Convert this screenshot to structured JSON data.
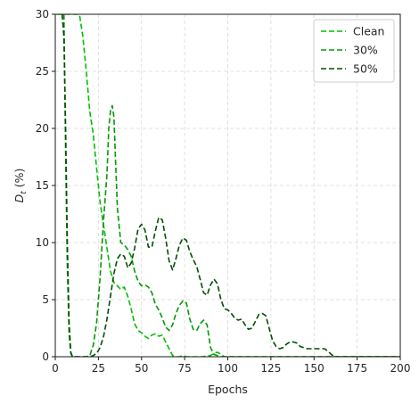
{
  "chart_data": {
    "type": "line",
    "xlabel": "Epochs",
    "ylabel": "D_t (%)",
    "xlim": [
      0,
      200
    ],
    "ylim": [
      0,
      30
    ],
    "xticks": [
      0,
      25,
      50,
      75,
      100,
      125,
      150,
      175,
      200
    ],
    "yticks": [
      0,
      5,
      10,
      15,
      20,
      25,
      30
    ],
    "grid": true,
    "legend_position": "top-right",
    "series": [
      {
        "name": "Clean",
        "color": "#00bf00",
        "points": [
          [
            1,
            30
          ],
          [
            10,
            30
          ],
          [
            14,
            30
          ],
          [
            16,
            28
          ],
          [
            18,
            25
          ],
          [
            20,
            21.5
          ],
          [
            22,
            19.5
          ],
          [
            24,
            16.5
          ],
          [
            26,
            13.5
          ],
          [
            28,
            11.5
          ],
          [
            30,
            9.5
          ],
          [
            32,
            7.5
          ],
          [
            34,
            6.5
          ],
          [
            36,
            6.2
          ],
          [
            38,
            5.9
          ],
          [
            40,
            6.1
          ],
          [
            42,
            5.3
          ],
          [
            44,
            4.2
          ],
          [
            46,
            2.9
          ],
          [
            48,
            2.3
          ],
          [
            50,
            2.1
          ],
          [
            52,
            1.8
          ],
          [
            54,
            1.6
          ],
          [
            56,
            1.9
          ],
          [
            58,
            2.0
          ],
          [
            60,
            1.8
          ],
          [
            62,
            1.9
          ],
          [
            64,
            1.3
          ],
          [
            66,
            0.7
          ],
          [
            68,
            0.1
          ],
          [
            70,
            0.0
          ],
          [
            72,
            0.0
          ],
          [
            74,
            0.1
          ],
          [
            76,
            0.0
          ],
          [
            80,
            0.0
          ],
          [
            85,
            0.0
          ],
          [
            90,
            0.1
          ],
          [
            92,
            0.3
          ],
          [
            94,
            0.4
          ],
          [
            96,
            0.2
          ],
          [
            98,
            0.0
          ],
          [
            105,
            0.0
          ],
          [
            120,
            0.0
          ],
          [
            150,
            0.0
          ],
          [
            200,
            0.0
          ]
        ]
      },
      {
        "name": "30%",
        "color": "#009a00",
        "points": [
          [
            5,
            30
          ],
          [
            6,
            18
          ],
          [
            7,
            8
          ],
          [
            8,
            2
          ],
          [
            9,
            0.3
          ],
          [
            10,
            0.0
          ],
          [
            14,
            0.0
          ],
          [
            18,
            0.0
          ],
          [
            20,
            0.1
          ],
          [
            22,
            1.0
          ],
          [
            24,
            3.0
          ],
          [
            26,
            7.0
          ],
          [
            28,
            12.0
          ],
          [
            30,
            16.0
          ],
          [
            31,
            20.0
          ],
          [
            32,
            21.5
          ],
          [
            33,
            22.0
          ],
          [
            34,
            21.0
          ],
          [
            35,
            17.0
          ],
          [
            36,
            13.0
          ],
          [
            38,
            10.0
          ],
          [
            40,
            9.8
          ],
          [
            42,
            9.4
          ],
          [
            44,
            8.8
          ],
          [
            46,
            7.5
          ],
          [
            48,
            6.6
          ],
          [
            50,
            6.2
          ],
          [
            52,
            6.3
          ],
          [
            54,
            6.1
          ],
          [
            56,
            5.6
          ],
          [
            58,
            4.6
          ],
          [
            60,
            4.1
          ],
          [
            62,
            3.4
          ],
          [
            64,
            2.6
          ],
          [
            66,
            2.3
          ],
          [
            68,
            2.8
          ],
          [
            70,
            3.8
          ],
          [
            72,
            4.5
          ],
          [
            74,
            4.9
          ],
          [
            76,
            4.7
          ],
          [
            78,
            3.3
          ],
          [
            80,
            2.4
          ],
          [
            82,
            2.3
          ],
          [
            84,
            2.9
          ],
          [
            86,
            3.2
          ],
          [
            88,
            2.8
          ],
          [
            90,
            0.8
          ],
          [
            92,
            0.2
          ],
          [
            94,
            0.1
          ],
          [
            96,
            0.0
          ],
          [
            100,
            0.0
          ],
          [
            120,
            0.0
          ],
          [
            150,
            0.0
          ],
          [
            200,
            0.0
          ]
        ]
      },
      {
        "name": "50%",
        "color": "#004f00",
        "points": [
          [
            4,
            30
          ],
          [
            5,
            28
          ],
          [
            6,
            20
          ],
          [
            7,
            10
          ],
          [
            8,
            3
          ],
          [
            9,
            0.4
          ],
          [
            10,
            0.0
          ],
          [
            14,
            0.0
          ],
          [
            20,
            0.0
          ],
          [
            22,
            0.1
          ],
          [
            24,
            0.3
          ],
          [
            26,
            0.8
          ],
          [
            28,
            1.8
          ],
          [
            30,
            3.3
          ],
          [
            32,
            5.3
          ],
          [
            34,
            7.3
          ],
          [
            36,
            8.6
          ],
          [
            38,
            9.0
          ],
          [
            40,
            8.8
          ],
          [
            42,
            7.8
          ],
          [
            44,
            8.2
          ],
          [
            46,
            9.5
          ],
          [
            48,
            11.2
          ],
          [
            50,
            11.6
          ],
          [
            52,
            11.1
          ],
          [
            54,
            9.6
          ],
          [
            56,
            9.6
          ],
          [
            58,
            11.0
          ],
          [
            60,
            12.2
          ],
          [
            62,
            12.0
          ],
          [
            64,
            10.4
          ],
          [
            66,
            8.4
          ],
          [
            68,
            7.6
          ],
          [
            70,
            8.6
          ],
          [
            72,
            9.8
          ],
          [
            74,
            10.4
          ],
          [
            76,
            10.2
          ],
          [
            78,
            9.2
          ],
          [
            80,
            8.5
          ],
          [
            82,
            7.9
          ],
          [
            84,
            6.8
          ],
          [
            86,
            5.6
          ],
          [
            88,
            5.4
          ],
          [
            90,
            6.3
          ],
          [
            92,
            6.8
          ],
          [
            94,
            6.4
          ],
          [
            96,
            5.0
          ],
          [
            98,
            4.2
          ],
          [
            100,
            4.1
          ],
          [
            102,
            3.8
          ],
          [
            104,
            3.4
          ],
          [
            106,
            3.2
          ],
          [
            108,
            3.3
          ],
          [
            110,
            2.8
          ],
          [
            112,
            2.4
          ],
          [
            114,
            2.5
          ],
          [
            116,
            3.1
          ],
          [
            118,
            3.7
          ],
          [
            120,
            3.8
          ],
          [
            122,
            3.6
          ],
          [
            124,
            2.5
          ],
          [
            126,
            1.4
          ],
          [
            128,
            0.9
          ],
          [
            130,
            0.7
          ],
          [
            132,
            0.8
          ],
          [
            134,
            1.1
          ],
          [
            136,
            1.3
          ],
          [
            138,
            1.3
          ],
          [
            140,
            1.2
          ],
          [
            142,
            0.9
          ],
          [
            144,
            0.8
          ],
          [
            146,
            0.7
          ],
          [
            150,
            0.7
          ],
          [
            154,
            0.7
          ],
          [
            156,
            0.7
          ],
          [
            158,
            0.5
          ],
          [
            160,
            0.2
          ],
          [
            162,
            0.0
          ],
          [
            170,
            0.0
          ],
          [
            200,
            0.0
          ]
        ]
      }
    ]
  }
}
